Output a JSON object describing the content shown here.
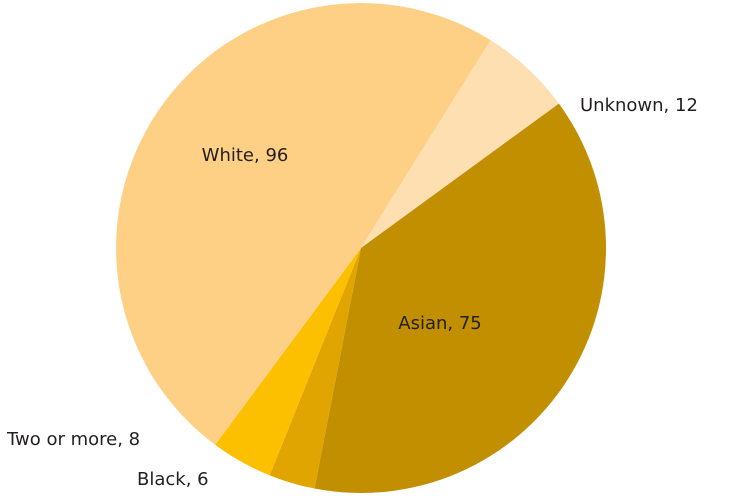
{
  "chart_data": {
    "type": "pie",
    "title": "",
    "categories": [
      "White",
      "Unknown",
      "Asian",
      "Black",
      "Two or more"
    ],
    "values": [
      96,
      12,
      75,
      6,
      8
    ],
    "labels": [
      "White, 96",
      "Unknown, 12",
      "Asian, 75",
      "Black, 6",
      "Two or more, 8"
    ],
    "colors": [
      "#FDD085",
      "#FEDFB2",
      "#C18F00",
      "#E0A500",
      "#FDC000"
    ],
    "legend": "none"
  }
}
